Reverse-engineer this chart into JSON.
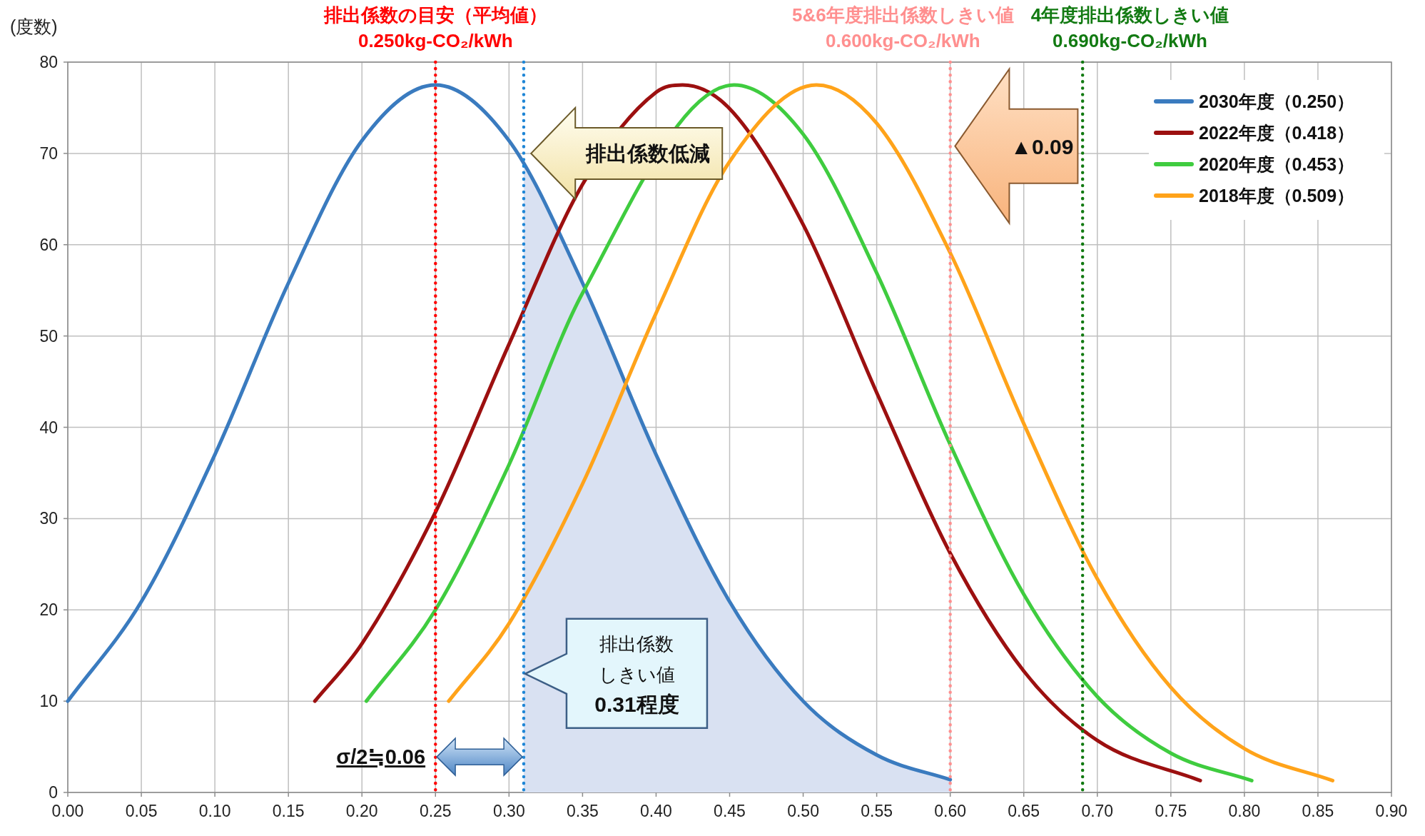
{
  "chart_data": {
    "type": "line",
    "ylabel": "(度数)",
    "xlim": [
      0,
      0.9
    ],
    "xticks": [
      {
        "value": 0,
        "label": "0.00"
      },
      {
        "value": 0.05,
        "label": "0.05"
      },
      {
        "value": 0.1,
        "label": "0.10"
      },
      {
        "value": 0.15,
        "label": "0.15"
      },
      {
        "value": 0.2,
        "label": "0.20"
      },
      {
        "value": 0.25,
        "label": "0.25"
      },
      {
        "value": 0.3,
        "label": "0.30"
      },
      {
        "value": 0.35,
        "label": "0.35"
      },
      {
        "value": 0.4,
        "label": "0.40"
      },
      {
        "value": 0.45,
        "label": "0.45"
      },
      {
        "value": 0.5,
        "label": "0.50"
      },
      {
        "value": 0.55,
        "label": "0.55"
      },
      {
        "value": 0.6,
        "label": "0.60"
      },
      {
        "value": 0.65,
        "label": "0.65"
      },
      {
        "value": 0.7,
        "label": "0.70"
      },
      {
        "value": 0.75,
        "label": "0.75"
      },
      {
        "value": 0.8,
        "label": "0.80"
      },
      {
        "value": 0.85,
        "label": "0.85"
      },
      {
        "value": 0.9,
        "label": "0.90"
      }
    ],
    "ylim": [
      0,
      80
    ],
    "yticks": [
      0,
      10,
      20,
      30,
      40,
      50,
      60,
      70,
      80
    ],
    "grid": true,
    "legend": "top right",
    "series": [
      {
        "type": "area",
        "color": "#d9e1f2",
        "x": [
          0.31,
          0.35,
          0.4,
          0.45,
          0.5,
          0.55,
          0.6
        ],
        "values": [
          68.9,
          55.8,
          37.0,
          20.9,
          10.0,
          4.1,
          1.4
        ]
      },
      {
        "name": "2030年度（0.250）",
        "color": "#3a7bbf",
        "x": [
          0,
          0.05,
          0.1,
          0.15,
          0.2,
          0.25,
          0.3,
          0.35,
          0.4,
          0.45,
          0.5,
          0.55,
          0.6
        ],
        "values": [
          10.0,
          20.9,
          37.0,
          55.8,
          71.4,
          77.5,
          71.4,
          55.8,
          37.0,
          20.9,
          10.0,
          4.1,
          1.4
        ]
      },
      {
        "name": "2022年度（0.418）",
        "color": "#9c1010",
        "x": [
          0.168,
          0.2,
          0.25,
          0.3,
          0.35,
          0.4,
          0.418,
          0.45,
          0.5,
          0.55,
          0.6,
          0.65,
          0.7,
          0.77
        ],
        "values": [
          10.0,
          16.3,
          30.7,
          49.1,
          66.6,
          76.7,
          77.5,
          74.9,
          62.2,
          43.8,
          26.2,
          13.3,
          5.7,
          1.3
        ]
      },
      {
        "name": "2020年度（0.453）",
        "color": "#3fcc3f",
        "x": [
          0.203,
          0.25,
          0.3,
          0.35,
          0.453,
          0.5,
          0.55,
          0.6,
          0.65,
          0.7,
          0.75,
          0.805
        ],
        "values": [
          10.0,
          20.0,
          35.9,
          54.7,
          77.5,
          72.1,
          56.9,
          38.1,
          21.7,
          10.5,
          4.3,
          1.3
        ]
      },
      {
        "name": "2018年度（0.509）",
        "color": "#ffa31a",
        "x": [
          0.259,
          0.3,
          0.35,
          0.4,
          0.45,
          0.509,
          0.55,
          0.6,
          0.65,
          0.7,
          0.75,
          0.8,
          0.86
        ],
        "values": [
          10.0,
          18.5,
          33.8,
          52.5,
          69.1,
          77.5,
          73.3,
          59.1,
          40.4,
          23.4,
          11.5,
          4.8,
          1.3
        ]
      }
    ],
    "ref_lines": [
      {
        "axis": "x",
        "value": 0.25,
        "label": "排出係数の目安（平均値）\n0.250kg-CO₂/kWh",
        "color": "#ff0000",
        "line_style": "dotted"
      },
      {
        "axis": "x",
        "value": 0.31,
        "color": "#1f86d6",
        "line_style": "dotted"
      },
      {
        "axis": "x",
        "value": 0.6,
        "label": "5&6年度排出係数しきい値\n0.600kg-CO₂/kWh",
        "color": "#ff8f8f",
        "line_style": "dotted"
      },
      {
        "axis": "x",
        "value": 0.69,
        "label": "4年度排出係数しきい値\n0.690kg-CO₂/kWh",
        "color": "#127a12",
        "line_style": "dotted"
      }
    ],
    "annotations": [
      "排出係数低減",
      "▲0.09",
      "排出係数しきい値",
      "0.31程度",
      "σ/2≒0.06"
    ]
  }
}
